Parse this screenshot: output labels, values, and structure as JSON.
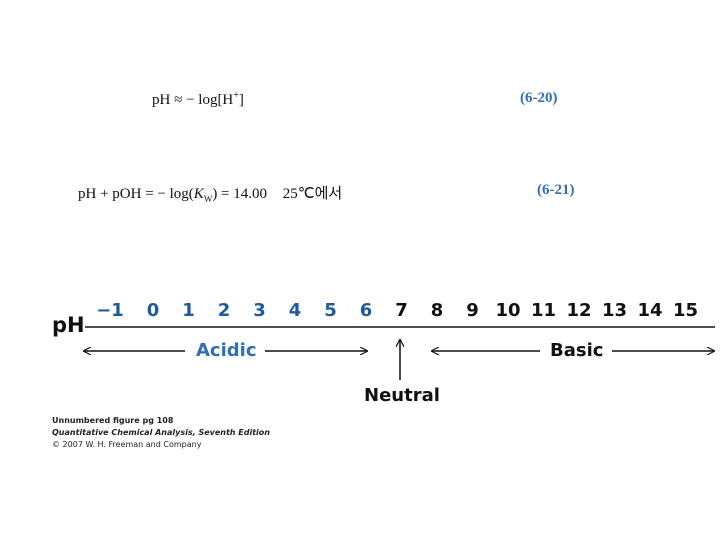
{
  "equations": [
    {
      "lhs": "pH ≈ − log[H",
      "charge": "+",
      "rhs": "]",
      "number": "(6-20)"
    },
    {
      "lhs": "pH + pOH = − log(",
      "k": "K",
      "sub": "W",
      "rhs": ") = 14.00",
      "condition": "25℃에서",
      "number": "(6-21)"
    }
  ],
  "scale": {
    "label": "pH",
    "ticks": [
      "−1",
      "0",
      "1",
      "2",
      "3",
      "4",
      "5",
      "6",
      "7",
      "8",
      "9",
      "10",
      "11",
      "12",
      "13",
      "14",
      "15"
    ],
    "acidic": "Acidic",
    "neutral": "Neutral",
    "basic": "Basic"
  },
  "caption": {
    "line1": "Unnumbered figure pg 108",
    "line2": "Quantitative Chemical Analysis, Seventh Edition",
    "line3": "© 2007 W. H. Freeman and Company"
  }
}
